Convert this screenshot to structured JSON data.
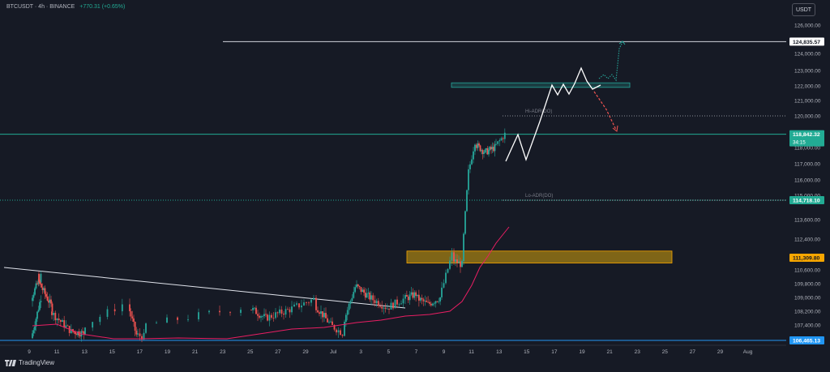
{
  "header": {
    "symbol": "BTCUSDT",
    "interval": "4h",
    "exchange": "BINANCE",
    "change": "+770.31 (+0.65%)"
  },
  "currency_label": "USDT",
  "brand": "TradingView",
  "colors": {
    "background": "#161a25",
    "up": "#26a69a",
    "down": "#ef5350",
    "ma": "#e91e63",
    "text": "#b2b5be"
  },
  "chart_data": {
    "type": "candlestick",
    "y_axis": {
      "ticks": [
        "126,000.00",
        "124,000.00",
        "123,000.00",
        "122,000.00",
        "121,000.00",
        "120,000.00",
        "118,000.00",
        "117,000.00",
        "116,000.00",
        "115,000.00",
        "113,600.00",
        "112,400.00",
        "110,600.00",
        "109,800.00",
        "109,000.00",
        "108,200.00",
        "107,400.00"
      ],
      "range": [
        106000,
        126500
      ]
    },
    "x_axis": {
      "ticks": [
        "9",
        "11",
        "13",
        "15",
        "17",
        "19",
        "21",
        "23",
        "25",
        "27",
        "29",
        "Jul",
        "3",
        "5",
        "7",
        "9",
        "11",
        "13",
        "15",
        "17",
        "19",
        "21",
        "23",
        "25",
        "27",
        "29",
        "Aug"
      ]
    },
    "price_labels": [
      {
        "name": "target",
        "value": 124835.57,
        "label": "124,835.57",
        "style": "white"
      },
      {
        "name": "last",
        "value": 118842.32,
        "label": "118,842.32",
        "sublabel": "34:15",
        "style": "green"
      },
      {
        "name": "lo-level",
        "value": 114718.1,
        "label": "114,718.10",
        "style": "teal"
      },
      {
        "name": "support",
        "value": 111309.8,
        "label": "111,309.80",
        "style": "orange"
      },
      {
        "name": "bottom",
        "value": 106465.13,
        "label": "106,465.13",
        "style": "blue"
      }
    ],
    "annotations": [
      {
        "text": "Hi-ADR(DO)",
        "value": 120000
      },
      {
        "text": "Lo-ADR(DO)",
        "value": 114718.1
      }
    ]
  }
}
